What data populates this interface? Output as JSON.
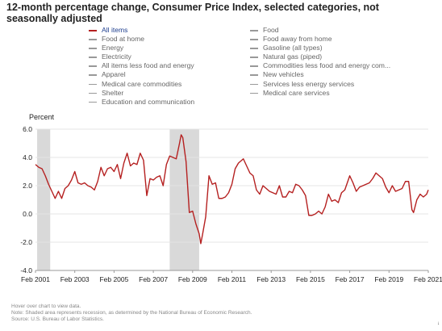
{
  "title": "12-month percentage change, Consumer Price Index, selected categories, not seasonally adjusted",
  "legend": {
    "left": [
      {
        "label": "All items",
        "active": true
      },
      {
        "label": "Food at home",
        "active": false
      },
      {
        "label": "Energy",
        "active": false
      },
      {
        "label": "Electricity",
        "active": false
      },
      {
        "label": "All items less food and energy",
        "active": false
      },
      {
        "label": "Apparel",
        "active": false
      },
      {
        "label": "Medical care commodities",
        "active": false
      },
      {
        "label": "Shelter",
        "active": false
      },
      {
        "label": "Education and communication",
        "active": false
      }
    ],
    "right": [
      {
        "label": "Food",
        "active": false
      },
      {
        "label": "Food away from home",
        "active": false
      },
      {
        "label": "Gasoline (all types)",
        "active": false
      },
      {
        "label": "Natural gas (piped)",
        "active": false
      },
      {
        "label": "Commodities less food and energy com...",
        "active": false
      },
      {
        "label": "New vehicles",
        "active": false
      },
      {
        "label": "Services less energy services",
        "active": false
      },
      {
        "label": "Medical care services",
        "active": false
      }
    ]
  },
  "notes": {
    "hover": "Hover over chart to view data.",
    "note": "Note: Shaded area represents recession, as determined by the National Bureau of Economic Research.",
    "source": "Source: U.S. Bureau of Labor Statistics."
  },
  "chart_data": {
    "type": "line",
    "title": "12-month percentage change, Consumer Price Index, selected categories, not seasonally adjusted",
    "ylabel": "Percent",
    "xlabel": "",
    "ylim": [
      -4.0,
      6.0
    ],
    "xlim": [
      "2001-02",
      "2021-02"
    ],
    "grid": true,
    "y_ticks": [
      "6.0",
      "4.0",
      "2.0",
      "0.0",
      "-2.0",
      "-4.0"
    ],
    "x_ticks": [
      "Feb 2001",
      "Feb 2003",
      "Feb 2005",
      "Feb 2007",
      "Feb 2009",
      "Feb 2011",
      "Feb 2013",
      "Feb 2015",
      "Feb 2017",
      "Feb 2019",
      "Feb 2021"
    ],
    "recessions": [
      [
        "2001-03",
        "2001-11"
      ],
      [
        "2007-12",
        "2009-06"
      ]
    ],
    "series": [
      {
        "name": "All items",
        "color": "#b52020",
        "points": [
          [
            "2001-02",
            3.5
          ],
          [
            "2001-04",
            3.3
          ],
          [
            "2001-06",
            3.2
          ],
          [
            "2001-08",
            2.7
          ],
          [
            "2001-10",
            2.1
          ],
          [
            "2001-12",
            1.6
          ],
          [
            "2002-02",
            1.1
          ],
          [
            "2002-04",
            1.6
          ],
          [
            "2002-06",
            1.1
          ],
          [
            "2002-08",
            1.8
          ],
          [
            "2002-10",
            2.0
          ],
          [
            "2002-12",
            2.4
          ],
          [
            "2003-02",
            3.0
          ],
          [
            "2003-04",
            2.2
          ],
          [
            "2003-06",
            2.1
          ],
          [
            "2003-08",
            2.2
          ],
          [
            "2003-10",
            2.0
          ],
          [
            "2003-12",
            1.9
          ],
          [
            "2004-02",
            1.7
          ],
          [
            "2004-04",
            2.3
          ],
          [
            "2004-06",
            3.3
          ],
          [
            "2004-08",
            2.7
          ],
          [
            "2004-10",
            3.2
          ],
          [
            "2004-12",
            3.3
          ],
          [
            "2005-02",
            3.0
          ],
          [
            "2005-04",
            3.5
          ],
          [
            "2005-06",
            2.5
          ],
          [
            "2005-08",
            3.6
          ],
          [
            "2005-10",
            4.3
          ],
          [
            "2005-12",
            3.4
          ],
          [
            "2006-02",
            3.6
          ],
          [
            "2006-04",
            3.5
          ],
          [
            "2006-06",
            4.3
          ],
          [
            "2006-08",
            3.8
          ],
          [
            "2006-10",
            1.3
          ],
          [
            "2006-12",
            2.5
          ],
          [
            "2007-02",
            2.4
          ],
          [
            "2007-04",
            2.6
          ],
          [
            "2007-06",
            2.7
          ],
          [
            "2007-08",
            2.0
          ],
          [
            "2007-10",
            3.5
          ],
          [
            "2007-12",
            4.1
          ],
          [
            "2008-02",
            4.0
          ],
          [
            "2008-04",
            3.9
          ],
          [
            "2008-06",
            5.0
          ],
          [
            "2008-07",
            5.6
          ],
          [
            "2008-08",
            5.4
          ],
          [
            "2008-10",
            3.7
          ],
          [
            "2008-12",
            0.1
          ],
          [
            "2009-02",
            0.2
          ],
          [
            "2009-04",
            -0.7
          ],
          [
            "2009-06",
            -1.4
          ],
          [
            "2009-07",
            -2.1
          ],
          [
            "2009-08",
            -1.5
          ],
          [
            "2009-10",
            -0.2
          ],
          [
            "2009-12",
            2.7
          ],
          [
            "2010-02",
            2.1
          ],
          [
            "2010-04",
            2.2
          ],
          [
            "2010-06",
            1.1
          ],
          [
            "2010-08",
            1.1
          ],
          [
            "2010-10",
            1.2
          ],
          [
            "2010-12",
            1.5
          ],
          [
            "2011-02",
            2.1
          ],
          [
            "2011-04",
            3.2
          ],
          [
            "2011-06",
            3.6
          ],
          [
            "2011-09",
            3.9
          ],
          [
            "2011-11",
            3.4
          ],
          [
            "2012-01",
            2.9
          ],
          [
            "2012-03",
            2.7
          ],
          [
            "2012-05",
            1.7
          ],
          [
            "2012-07",
            1.4
          ],
          [
            "2012-09",
            2.0
          ],
          [
            "2012-11",
            1.8
          ],
          [
            "2013-01",
            1.6
          ],
          [
            "2013-03",
            1.5
          ],
          [
            "2013-05",
            1.4
          ],
          [
            "2013-07",
            2.0
          ],
          [
            "2013-09",
            1.2
          ],
          [
            "2013-11",
            1.2
          ],
          [
            "2014-01",
            1.6
          ],
          [
            "2014-03",
            1.5
          ],
          [
            "2014-05",
            2.1
          ],
          [
            "2014-07",
            2.0
          ],
          [
            "2014-09",
            1.7
          ],
          [
            "2014-11",
            1.3
          ],
          [
            "2015-01",
            -0.1
          ],
          [
            "2015-03",
            -0.1
          ],
          [
            "2015-05",
            0.0
          ],
          [
            "2015-07",
            0.2
          ],
          [
            "2015-09",
            0.0
          ],
          [
            "2015-11",
            0.5
          ],
          [
            "2016-01",
            1.4
          ],
          [
            "2016-03",
            0.9
          ],
          [
            "2016-05",
            1.0
          ],
          [
            "2016-07",
            0.8
          ],
          [
            "2016-09",
            1.5
          ],
          [
            "2016-11",
            1.7
          ],
          [
            "2017-02",
            2.7
          ],
          [
            "2017-04",
            2.2
          ],
          [
            "2017-06",
            1.6
          ],
          [
            "2017-08",
            1.9
          ],
          [
            "2017-10",
            2.0
          ],
          [
            "2017-12",
            2.1
          ],
          [
            "2018-02",
            2.2
          ],
          [
            "2018-04",
            2.5
          ],
          [
            "2018-06",
            2.9
          ],
          [
            "2018-08",
            2.7
          ],
          [
            "2018-10",
            2.5
          ],
          [
            "2018-12",
            1.9
          ],
          [
            "2019-02",
            1.5
          ],
          [
            "2019-04",
            2.0
          ],
          [
            "2019-06",
            1.6
          ],
          [
            "2019-08",
            1.7
          ],
          [
            "2019-10",
            1.8
          ],
          [
            "2019-12",
            2.3
          ],
          [
            "2020-02",
            2.3
          ],
          [
            "2020-04",
            0.3
          ],
          [
            "2020-05",
            0.1
          ],
          [
            "2020-07",
            1.0
          ],
          [
            "2020-09",
            1.4
          ],
          [
            "2020-11",
            1.2
          ],
          [
            "2021-01",
            1.4
          ],
          [
            "2021-02",
            1.7
          ]
        ]
      }
    ]
  }
}
